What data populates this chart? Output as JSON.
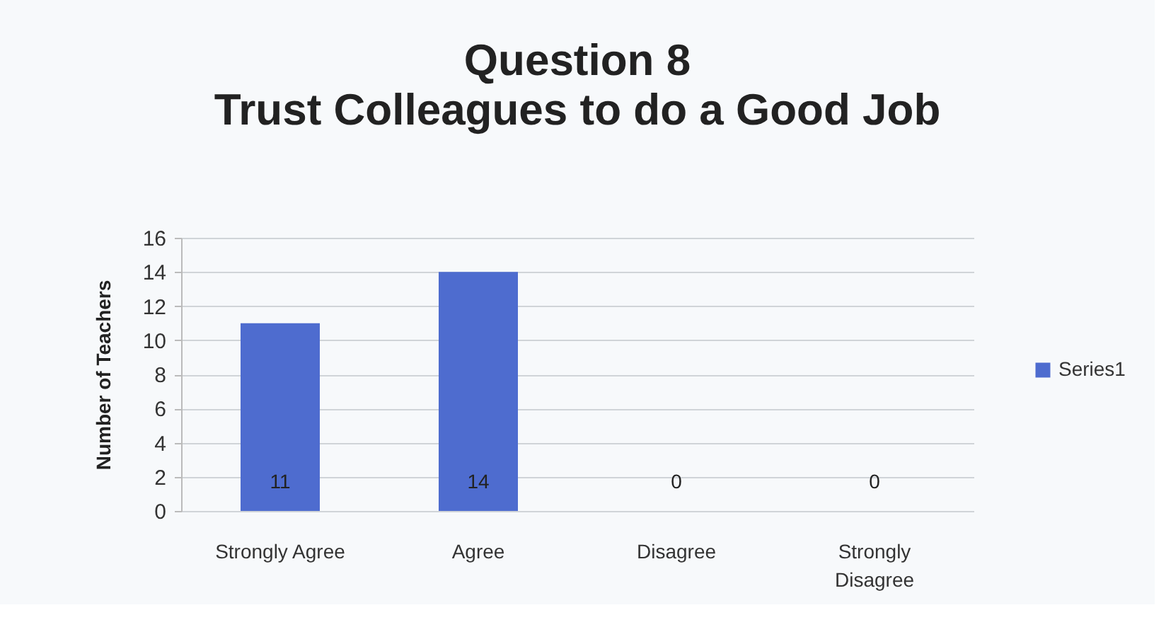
{
  "chart_data": {
    "type": "bar",
    "title": [
      "Question 8",
      "Trust Colleagues to do a Good Job"
    ],
    "ylabel": "Number of Teachers",
    "categories": [
      "Strongly Agree",
      "Agree",
      "Disagree",
      "Strongly Disagree"
    ],
    "series": [
      {
        "name": "Series1",
        "color": "#4e6ccf",
        "values": [
          11,
          14,
          0,
          0
        ]
      }
    ],
    "ylim": [
      0,
      16
    ],
    "yticks": [
      0,
      2,
      4,
      6,
      8,
      10,
      12,
      14,
      16
    ],
    "grid": "y",
    "legend": "right",
    "data_labels": true
  }
}
